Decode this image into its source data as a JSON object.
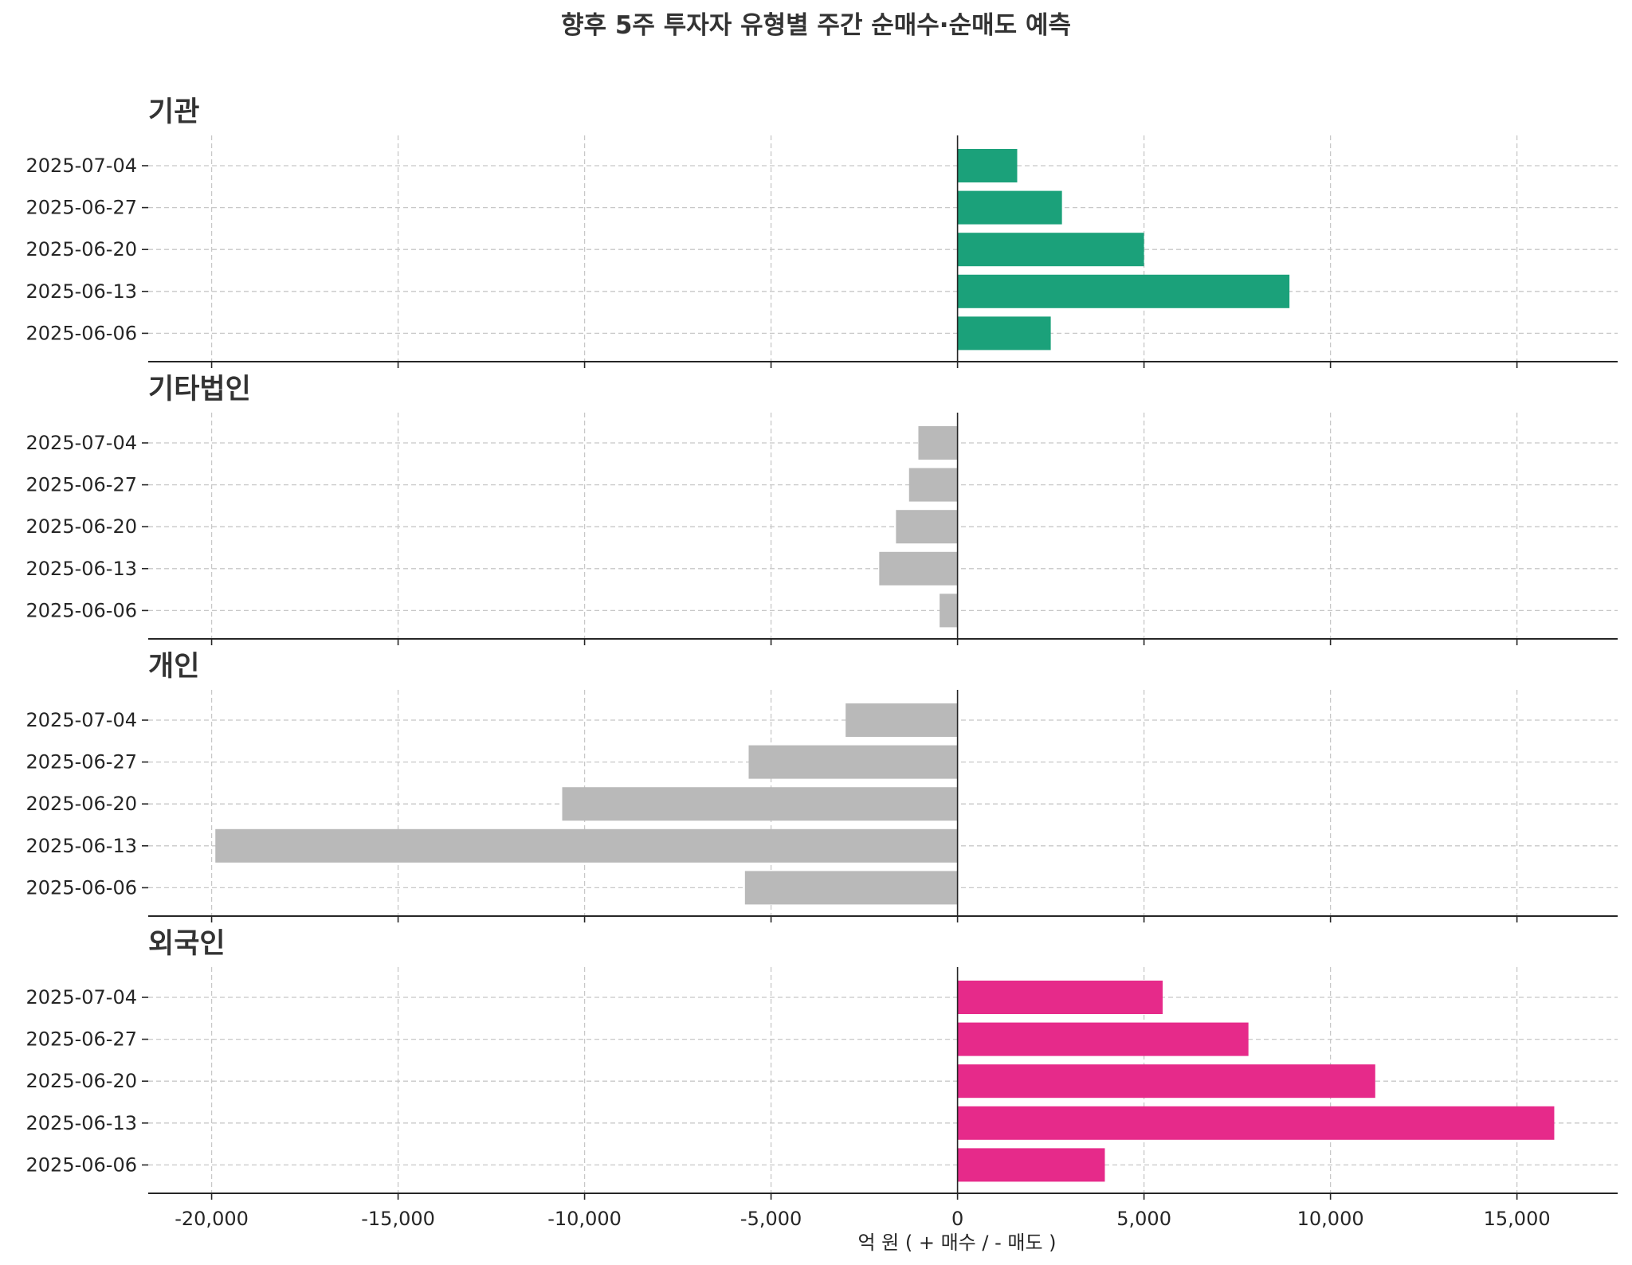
{
  "chart_data": {
    "type": "bar",
    "orientation": "horizontal",
    "title": "향후 5주 투자자 유형별 주간 순매수·순매도 예측",
    "xlabel": "억 원 ( + 매수  /  - 매도 )",
    "xlim": [
      -21700,
      17700
    ],
    "xticks": [
      -20000,
      -15000,
      -10000,
      -5000,
      0,
      5000,
      10000,
      15000
    ],
    "xtick_labels": [
      "-20,000",
      "-15,000",
      "-10,000",
      "-5,000",
      "0",
      "5,000",
      "10,000",
      "15,000"
    ],
    "grid": true,
    "categories": [
      "2025-06-06",
      "2025-06-13",
      "2025-06-20",
      "2025-06-27",
      "2025-07-04"
    ],
    "panels": [
      {
        "title": "기관",
        "color": "#1ba17a",
        "values": [
          2500,
          8900,
          5000,
          2800,
          1600
        ]
      },
      {
        "title": "기타법인",
        "color": "#b9b9b9",
        "values": [
          -480,
          -2100,
          -1650,
          -1300,
          -1050
        ]
      },
      {
        "title": "개인",
        "color": "#b9b9b9",
        "values": [
          -5700,
          -19900,
          -10600,
          -5600,
          -3000
        ]
      },
      {
        "title": "외국인",
        "color": "#e62a8a",
        "values": [
          3950,
          16000,
          11200,
          7800,
          5500
        ]
      }
    ]
  }
}
